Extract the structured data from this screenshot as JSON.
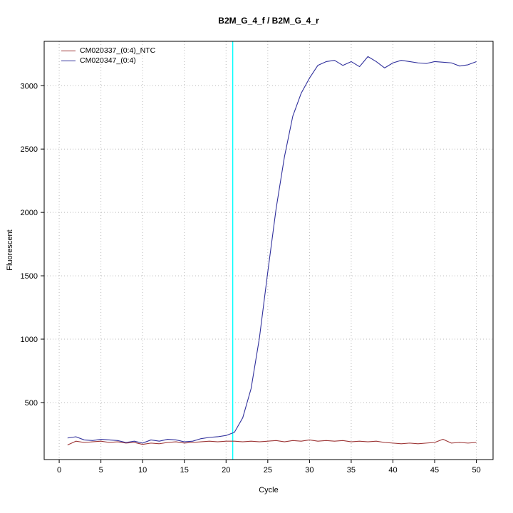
{
  "title": "B2M_G_4_f / B2M_G_4_r",
  "chart_data": {
    "type": "line",
    "title": "B2M_G_4_f / B2M_G_4_r",
    "xlabel": "Cycle",
    "ylabel": "Fluorescent",
    "xlim": [
      -1.8,
      52
    ],
    "ylim": [
      50,
      3350
    ],
    "xticks": [
      0,
      5,
      10,
      15,
      20,
      25,
      30,
      35,
      40,
      45,
      50
    ],
    "yticks": [
      500,
      1000,
      1500,
      2000,
      2500,
      3000
    ],
    "grid": "dotted",
    "grid_color": "#b9b9b9",
    "legend_position": "top-left",
    "threshold_line": {
      "x": 20.8,
      "color": "#00ffff"
    },
    "x": [
      1,
      2,
      3,
      4,
      5,
      6,
      7,
      8,
      9,
      10,
      11,
      12,
      13,
      14,
      15,
      16,
      17,
      18,
      19,
      20,
      21,
      22,
      23,
      24,
      25,
      26,
      27,
      28,
      29,
      30,
      31,
      32,
      33,
      34,
      35,
      36,
      37,
      38,
      39,
      40,
      41,
      42,
      43,
      44,
      45,
      46,
      47,
      48,
      49,
      50
    ],
    "series": [
      {
        "name": "CM020337_(0:4)_NTC",
        "color": "#9c3434",
        "values": [
          165,
          195,
          185,
          190,
          195,
          185,
          190,
          180,
          185,
          170,
          180,
          175,
          185,
          190,
          180,
          185,
          190,
          195,
          190,
          195,
          195,
          190,
          195,
          190,
          195,
          200,
          190,
          200,
          195,
          205,
          195,
          200,
          195,
          200,
          190,
          195,
          190,
          195,
          185,
          180,
          175,
          180,
          175,
          180,
          185,
          210,
          180,
          185,
          180,
          185
        ]
      },
      {
        "name": "CM020347_(0:4)",
        "color": "#30309c",
        "values": [
          220,
          230,
          205,
          200,
          210,
          205,
          200,
          185,
          195,
          180,
          205,
          195,
          210,
          205,
          190,
          195,
          215,
          225,
          230,
          240,
          265,
          380,
          610,
          1010,
          1530,
          2030,
          2440,
          2760,
          2940,
          3060,
          3160,
          3190,
          3200,
          3160,
          3190,
          3150,
          3230,
          3190,
          3140,
          3180,
          3200,
          3190,
          3180,
          3175,
          3190,
          3185,
          3180,
          3155,
          3165,
          3190
        ]
      }
    ]
  }
}
